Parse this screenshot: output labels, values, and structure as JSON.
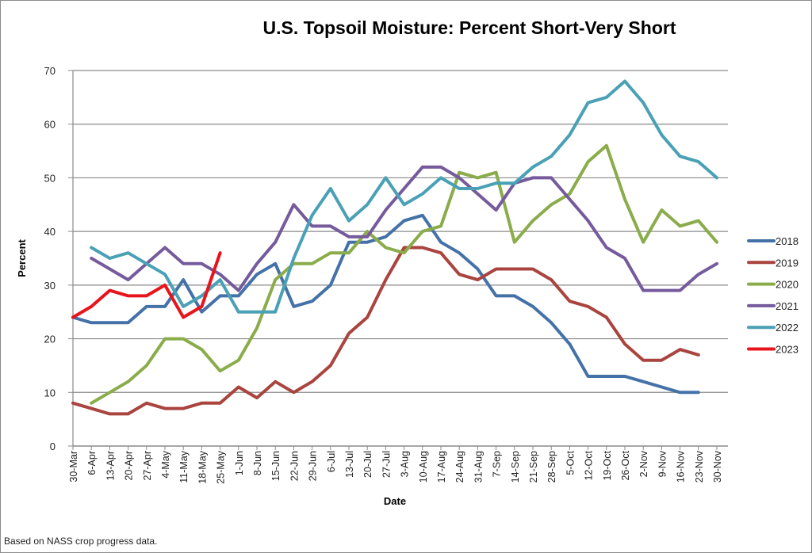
{
  "footnote": "Based on NASS crop progress data.",
  "chart_data": {
    "type": "line",
    "title": "U.S. Topsoil Moisture: Percent Short-Very Short",
    "xlabel": "Date",
    "ylabel": "Percent",
    "ylim": [
      0,
      70
    ],
    "yticks": [
      0,
      10,
      20,
      30,
      40,
      50,
      60,
      70
    ],
    "grid": true,
    "legend": "right",
    "x": [
      "30-Mar",
      "6-Apr",
      "13-Apr",
      "20-Apr",
      "27-Apr",
      "4-May",
      "11-May",
      "18-May",
      "25-May",
      "1-Jun",
      "8-Jun",
      "15-Jun",
      "22-Jun",
      "29-Jun",
      "6-Jul",
      "13-Jul",
      "20-Jul",
      "27-Jul",
      "3-Aug",
      "10-Aug",
      "17-Aug",
      "24-Aug",
      "31-Aug",
      "7-Sep",
      "14-Sep",
      "21-Sep",
      "28-Sep",
      "5-Oct",
      "12-Oct",
      "19-Oct",
      "26-Oct",
      "2-Nov",
      "9-Nov",
      "16-Nov",
      "23-Nov",
      "30-Nov"
    ],
    "series": [
      {
        "name": "2018",
        "color": "#4472a8",
        "values": [
          24,
          23,
          23,
          23,
          26,
          26,
          31,
          25,
          28,
          28,
          32,
          34,
          26,
          27,
          30,
          38,
          38,
          39,
          42,
          43,
          38,
          36,
          33,
          28,
          28,
          26,
          23,
          19,
          13,
          13,
          13,
          12,
          11,
          10,
          10,
          null
        ]
      },
      {
        "name": "2019",
        "color": "#a9443f",
        "values": [
          8,
          7,
          6,
          6,
          8,
          7,
          7,
          8,
          8,
          11,
          9,
          12,
          10,
          12,
          15,
          21,
          24,
          31,
          37,
          37,
          36,
          32,
          31,
          33,
          33,
          33,
          31,
          27,
          26,
          24,
          19,
          16,
          16,
          18,
          17,
          null
        ]
      },
      {
        "name": "2020",
        "color": "#8aac4b",
        "values": [
          null,
          8,
          10,
          12,
          15,
          20,
          20,
          18,
          14,
          16,
          22,
          31,
          34,
          34,
          36,
          36,
          40,
          37,
          36,
          40,
          41,
          51,
          50,
          51,
          38,
          42,
          45,
          47,
          53,
          56,
          46,
          38,
          44,
          41,
          42,
          38
        ]
      },
      {
        "name": "2021",
        "color": "#765b9c",
        "values": [
          null,
          35,
          33,
          31,
          34,
          37,
          34,
          34,
          32,
          29,
          34,
          38,
          45,
          41,
          41,
          39,
          39,
          44,
          48,
          52,
          52,
          50,
          47,
          44,
          49,
          50,
          50,
          46,
          42,
          37,
          35,
          29,
          29,
          29,
          32,
          34
        ]
      },
      {
        "name": "2022",
        "color": "#4aa0b5",
        "values": [
          null,
          37,
          35,
          36,
          34,
          32,
          26,
          28,
          31,
          25,
          25,
          25,
          35,
          43,
          48,
          42,
          45,
          50,
          45,
          47,
          50,
          48,
          48,
          49,
          49,
          52,
          54,
          58,
          64,
          65,
          68,
          64,
          58,
          54,
          53,
          50
        ]
      },
      {
        "name": "2023",
        "color": "#e8141b",
        "values": [
          24,
          26,
          29,
          28,
          28,
          30,
          24,
          26,
          36,
          null,
          null,
          null,
          null,
          null,
          null,
          null,
          null,
          null,
          null,
          null,
          null,
          null,
          null,
          null,
          null,
          null,
          null,
          null,
          null,
          null,
          null,
          null,
          null,
          null,
          null,
          null
        ]
      }
    ]
  }
}
